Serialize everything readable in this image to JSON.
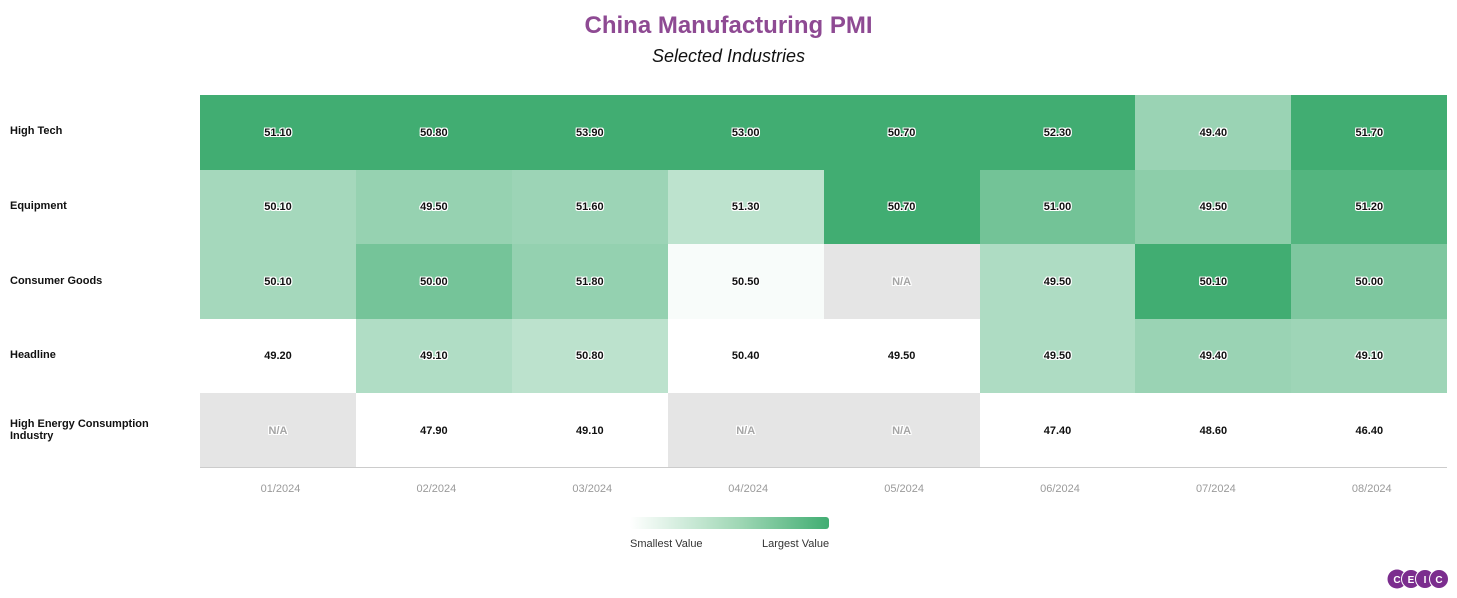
{
  "chart_data": {
    "type": "heatmap",
    "title": "China Manufacturing PMI",
    "subtitle": "Selected Industries",
    "columns": [
      "01/2024",
      "02/2024",
      "03/2024",
      "04/2024",
      "05/2024",
      "06/2024",
      "07/2024",
      "08/2024"
    ],
    "rows": [
      {
        "name": "High Tech",
        "values": [
          "51.10",
          "50.80",
          "53.90",
          "53.00",
          "50.70",
          "52.30",
          "49.40",
          "51.70"
        ]
      },
      {
        "name": "Equipment",
        "values": [
          "50.10",
          "49.50",
          "51.60",
          "51.30",
          "50.70",
          "51.00",
          "49.50",
          "51.20"
        ]
      },
      {
        "name": "Consumer Goods",
        "values": [
          "50.10",
          "50.00",
          "51.80",
          "50.50",
          "N/A",
          "49.50",
          "50.10",
          "50.00"
        ]
      },
      {
        "name": "Headline",
        "values": [
          "49.20",
          "49.10",
          "50.80",
          "50.40",
          "49.50",
          "49.50",
          "49.40",
          "49.10"
        ]
      },
      {
        "name": "High Energy Consumption Industry",
        "values": [
          "N/A",
          "47.90",
          "49.10",
          "N/A",
          "N/A",
          "47.40",
          "48.60",
          "46.40"
        ]
      }
    ],
    "missing_label": "N/A",
    "legend": {
      "min_label": "Smallest Value",
      "max_label": "Largest Value",
      "position": "bottom-center"
    },
    "color_scale": {
      "low": "#ffffff",
      "high": "#41ad72",
      "missing": "#e5e5e5"
    }
  },
  "brand": {
    "logo_text": "CEIC",
    "logo_color": "#7b2d8e",
    "title_color": "#8e4a93"
  }
}
